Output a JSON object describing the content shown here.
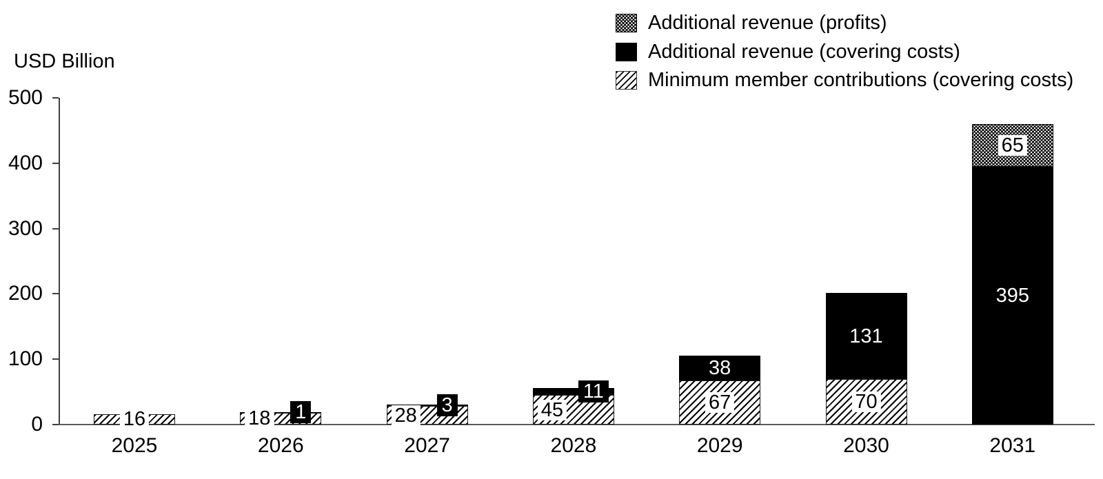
{
  "colors": {
    "background": "#ffffff",
    "bar_solid": "#000000",
    "text": "#000000",
    "axis": "#4d4d4d",
    "label_on_dark": "#ffffff"
  },
  "unit_label": "USD Billion",
  "legend": {
    "position": "top-right",
    "items": [
      {
        "label": "Additional revenue (profits)",
        "swatch": "dotted-pattern"
      },
      {
        "label": "Additional revenue (covering costs)",
        "swatch": "solid-black"
      },
      {
        "label": "Minimum member contributions (covering costs)",
        "swatch": "diagonal-hatch"
      }
    ]
  },
  "chart_data": {
    "type": "bar",
    "stacked": true,
    "title": "",
    "xlabel": "",
    "ylabel": "USD Billion",
    "ylim": [
      0,
      500
    ],
    "yticks": [
      0,
      100,
      200,
      300,
      400,
      500
    ],
    "grid": false,
    "legend_position": "top-right",
    "categories": [
      "2025",
      "2026",
      "2027",
      "2028",
      "2029",
      "2030",
      "2031"
    ],
    "series": [
      {
        "name": "Minimum member contributions (covering costs)",
        "pattern": "diagonal-hatch",
        "values": [
          16,
          18,
          28,
          45,
          67,
          70,
          0
        ]
      },
      {
        "name": "Additional revenue (covering costs)",
        "pattern": "solid-black",
        "values": [
          0,
          1,
          3,
          11,
          38,
          131,
          395
        ]
      },
      {
        "name": "Additional revenue (profits)",
        "pattern": "dotted",
        "values": [
          0,
          0,
          0,
          0,
          0,
          0,
          65
        ]
      }
    ],
    "totals": [
      16,
      19,
      31,
      56,
      105,
      201,
      460
    ]
  }
}
